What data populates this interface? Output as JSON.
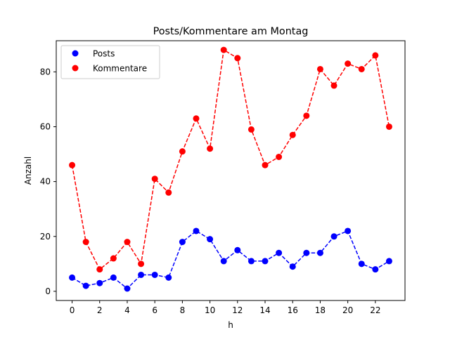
{
  "chart_data": {
    "type": "line",
    "title": "Posts/Kommentare am Montag",
    "xlabel": "h",
    "ylabel": "Anzahl",
    "xlim": [
      -1.15,
      24.15
    ],
    "ylim": [
      -3.35,
      91.35
    ],
    "xticks": [
      0,
      2,
      4,
      6,
      8,
      10,
      12,
      14,
      16,
      18,
      20,
      22
    ],
    "yticks": [
      0,
      20,
      40,
      60,
      80
    ],
    "grid": false,
    "legend_position": "top-left",
    "x": [
      0,
      1,
      2,
      3,
      4,
      5,
      6,
      7,
      8,
      9,
      10,
      11,
      12,
      13,
      14,
      15,
      16,
      17,
      18,
      19,
      20,
      21,
      22,
      23
    ],
    "series": [
      {
        "name": "Posts",
        "color": "#0000ff",
        "values": [
          5,
          2,
          3,
          5,
          1,
          6,
          6,
          5,
          18,
          22,
          19,
          11,
          15,
          11,
          11,
          14,
          9,
          14,
          14,
          20,
          22,
          10,
          8,
          11
        ]
      },
      {
        "name": "Kommentare",
        "color": "#ff0000",
        "values": [
          46,
          18,
          8,
          12,
          18,
          10,
          41,
          36,
          51,
          63,
          52,
          88,
          85,
          59,
          46,
          49,
          57,
          64,
          81,
          75,
          83,
          81,
          86,
          60
        ]
      }
    ]
  }
}
